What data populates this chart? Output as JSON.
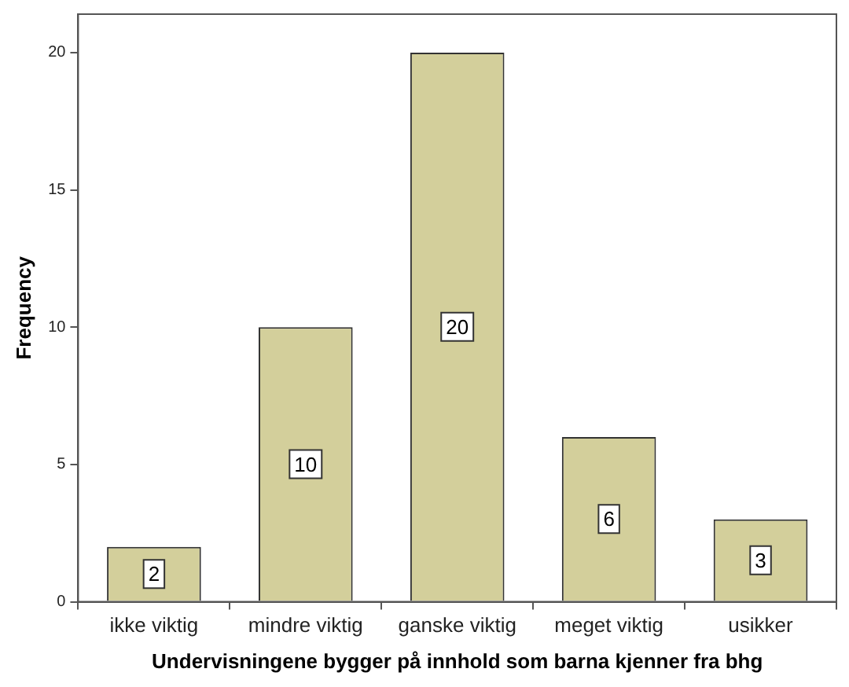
{
  "chart_data": {
    "type": "bar",
    "xlabel": "Undervisningene bygger på innhold som barna kjenner fra bhg",
    "ylabel": "Frequency",
    "categories": [
      "ikke viktig",
      "mindre viktig",
      "ganske viktig",
      "meget viktig",
      "usikker"
    ],
    "values": [
      2,
      10,
      20,
      6,
      3
    ],
    "color": "#d3cf9b",
    "ylim": [
      0,
      21.4
    ],
    "yticks": [
      0,
      5,
      10,
      15,
      20
    ],
    "grid": false,
    "legend": false,
    "data_labels": true
  }
}
